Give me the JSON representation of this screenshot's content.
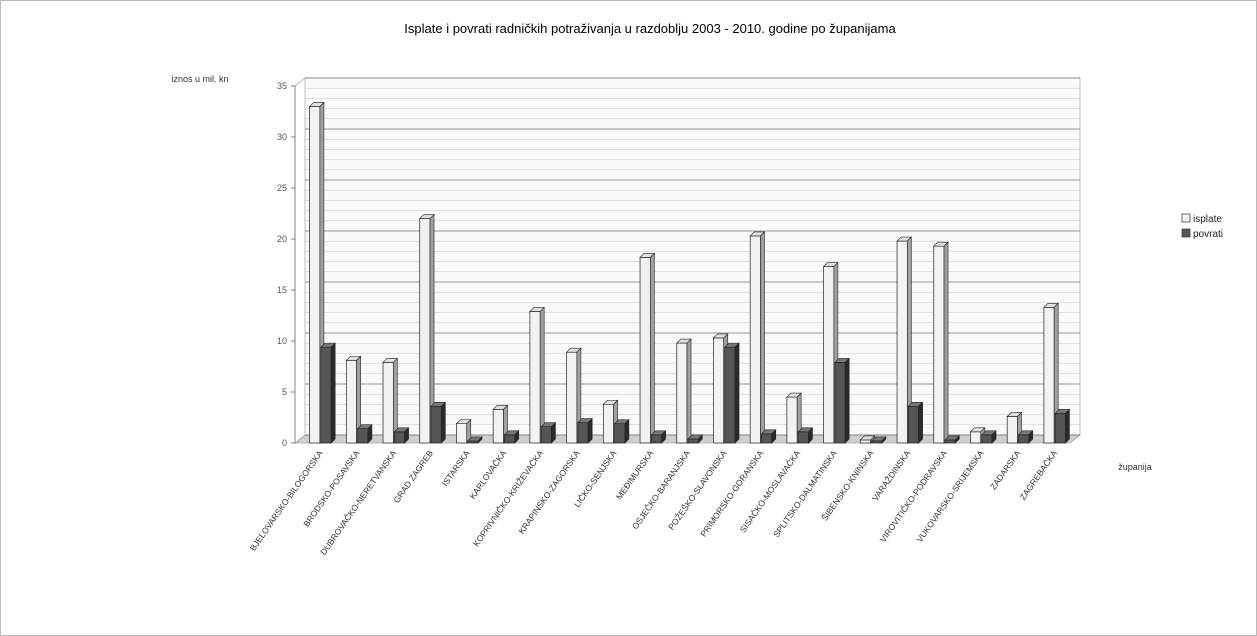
{
  "chart_data": {
    "type": "bar",
    "title": "Isplate i povrati radničkih potraživanja u razdoblju 2003 - 2010. godine po županijama",
    "ylabel": "iznos u mil. kn",
    "xlabel": "županija",
    "ylim": [
      0,
      35
    ],
    "yticks": [
      0,
      5,
      10,
      15,
      20,
      25,
      30,
      35
    ],
    "grid": true,
    "legend_position": "right",
    "categories": [
      "BJELOVARSKO-BILOGORSKA",
      "BRODSKO-POSAVSKA",
      "DUBROVAČKO-NERETVANSKA",
      "GRAD ZAGREB",
      "ISTARSKA",
      "KARLOVAČKA",
      "KOPRIVNIČKO-KRIŽEVAČKA",
      "KRAPINSKO-ZAGORSKA",
      "LIČKO-SENJSKA",
      "MEĐIMURSKA",
      "OSJEČKO-BARANJSKA",
      "POŽEŠKO-SLAVONSKA",
      "PRIMORSKO-GORANSKA",
      "SISAČKO-MOSLAVAČKA",
      "SPLITSKO-DALMATINSKA",
      "ŠIBENSKO-KNINSKA",
      "VARAŽDINSKA",
      "VIROVITIČKO-PODRAVSKA",
      "VUKOVARSKO-SRIJEMSKA",
      "ZADARSKA",
      "ZAGREBAČKA"
    ],
    "series": [
      {
        "name": "isplate",
        "color": "#f2f2f2",
        "values": [
          33,
          8.1,
          7.9,
          22,
          1.9,
          3.3,
          12.9,
          8.9,
          3.8,
          18.2,
          9.8,
          10.3,
          20.3,
          4.5,
          17.3,
          0.3,
          19.8,
          19.3,
          1.1,
          2.6,
          13.3
        ]
      },
      {
        "name": "povrati",
        "color": "#555555",
        "values": [
          9.4,
          1.4,
          1.1,
          3.6,
          0.2,
          0.8,
          1.6,
          2.0,
          1.9,
          0.8,
          0.4,
          9.4,
          0.9,
          1.1,
          7.9,
          0.2,
          3.6,
          0.3,
          0.8,
          0.8,
          2.9
        ]
      }
    ]
  }
}
